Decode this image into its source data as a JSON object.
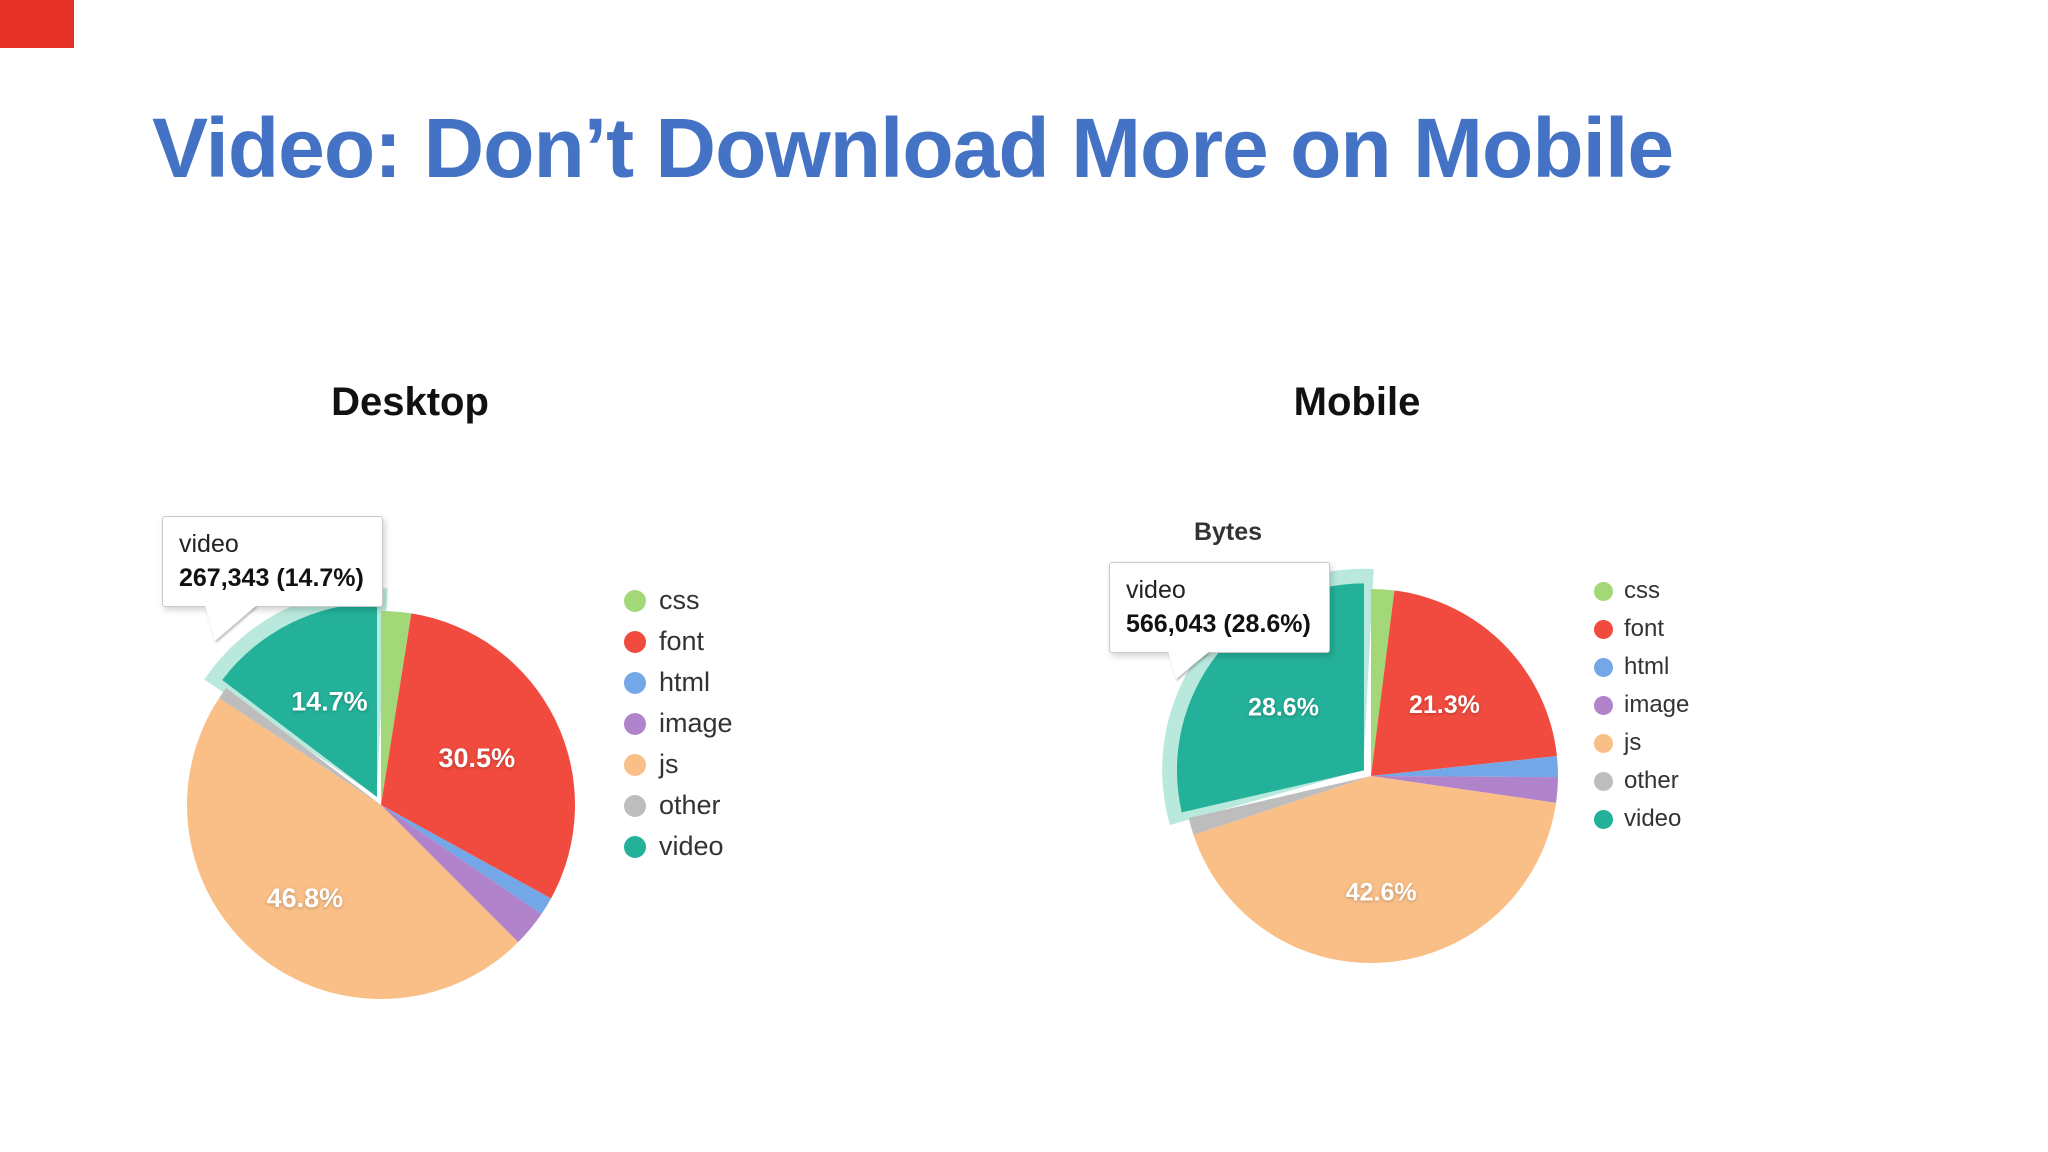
{
  "slide": {
    "title": "Video: Don’t Download More on Mobile"
  },
  "theme": {
    "title_color": "#4472c4",
    "background": "#ffffff",
    "corner_marker_color": "#e53125",
    "highlight_color": "#b9e8dc",
    "slice_label_color": "#ffffff",
    "legend_text_color": "#333333"
  },
  "palette": {
    "css": "#a2d878",
    "font": "#f04b3e",
    "html": "#74a7e8",
    "image": "#b083cb",
    "js": "#f9bf87",
    "other": "#bdbdbd",
    "video": "#24b19a"
  },
  "chart_data": [
    {
      "type": "pie",
      "title": "Desktop",
      "categories": [
        "css",
        "font",
        "html",
        "image",
        "js",
        "other",
        "video"
      ],
      "values": [
        2.5,
        30.5,
        1.5,
        3.0,
        46.8,
        1.0,
        14.7
      ],
      "value_format": "percent",
      "shown_labels": {
        "font": "30.5%",
        "js": "46.8%",
        "video": "14.7%"
      },
      "highlighted": "video",
      "tooltip": {
        "name": "video",
        "value": "267,343 (14.7%)"
      },
      "legend": [
        "css",
        "font",
        "html",
        "image",
        "js",
        "other",
        "video"
      ],
      "legend_position": "right"
    },
    {
      "type": "pie",
      "title": "Mobile",
      "axis_title": "Bytes",
      "categories": [
        "css",
        "font",
        "html",
        "image",
        "js",
        "other",
        "video"
      ],
      "values": [
        2.0,
        21.3,
        1.8,
        2.2,
        42.6,
        1.5,
        28.6
      ],
      "value_format": "percent",
      "shown_labels": {
        "font": "21.3%",
        "js": "42.6%",
        "video": "28.6%"
      },
      "highlighted": "video",
      "tooltip": {
        "name": "video",
        "value": "566,043 (28.6%)"
      },
      "legend": [
        "css",
        "font",
        "html",
        "image",
        "js",
        "other",
        "video"
      ],
      "legend_position": "right"
    }
  ]
}
